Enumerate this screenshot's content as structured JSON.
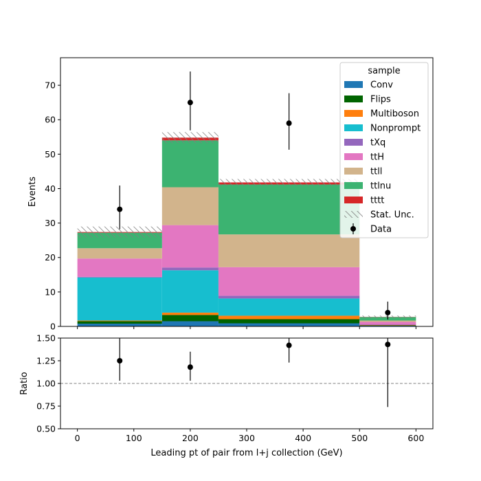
{
  "chart_data": [
    {
      "type": "bar",
      "subtype": "stacked-histogram",
      "xlabel": "Leading pt of pair from l+j collection (GeV)",
      "ylabel": "Events",
      "xlim": [
        -30,
        630
      ],
      "ylim": [
        0,
        78
      ],
      "bin_edges": [
        0,
        150,
        250,
        500,
        600
      ],
      "legend_title": "sample",
      "legend_loc": "upper right",
      "series": [
        {
          "name": "Conv",
          "color": "#1f77b4",
          "values": [
            0.8,
            1.5,
            0.9,
            0.2
          ]
        },
        {
          "name": "Flips",
          "color": "#006400",
          "values": [
            0.7,
            1.8,
            1.2,
            0.1
          ]
        },
        {
          "name": "Multiboson",
          "color": "#ff7f0e",
          "values": [
            0.2,
            0.7,
            1.0,
            0.1
          ]
        },
        {
          "name": "Nonprompt",
          "color": "#17becf",
          "values": [
            12.5,
            12.3,
            5.0,
            0.0
          ]
        },
        {
          "name": "tXq",
          "color": "#9467bd",
          "values": [
            0.2,
            0.8,
            0.8,
            0.1
          ]
        },
        {
          "name": "ttH",
          "color": "#e377c2",
          "values": [
            5.3,
            12.3,
            8.3,
            0.8
          ]
        },
        {
          "name": "ttll",
          "color": "#d2b48c",
          "values": [
            3.0,
            11.0,
            9.5,
            0.4
          ]
        },
        {
          "name": "ttlnu",
          "color": "#3cb371",
          "values": [
            4.5,
            13.6,
            14.5,
            1.0
          ]
        },
        {
          "name": "tttt",
          "color": "#d62728",
          "values": [
            0.2,
            0.8,
            0.6,
            0.05
          ]
        }
      ],
      "stat_unc": {
        "name": "Stat. Unc.",
        "values": [
          1.6,
          1.6,
          1.0,
          0.4
        ]
      },
      "data": {
        "name": "Data",
        "x": [
          75,
          200,
          375,
          550
        ],
        "y": [
          34,
          65,
          59,
          4
        ],
        "yerr_low": [
          5.8,
          8.1,
          7.7,
          2.0
        ],
        "yerr_high": [
          6.9,
          9.0,
          8.7,
          3.2
        ]
      },
      "yticks": [
        0,
        10,
        20,
        30,
        40,
        50,
        60,
        70
      ]
    },
    {
      "type": "scatter",
      "subtype": "ratio",
      "xlabel": "Leading pt of pair from l+j collection (GeV)",
      "ylabel": "Ratio",
      "xlim": [
        -30,
        630
      ],
      "ylim": [
        0.5,
        1.5
      ],
      "reference_line": 1.0,
      "x": [
        75,
        200,
        375,
        550
      ],
      "y": [
        1.25,
        1.18,
        1.42,
        1.43
      ],
      "yerr_low": [
        0.22,
        0.15,
        0.19,
        0.69
      ],
      "yerr_high": [
        0.3,
        0.17,
        0.21,
        0.8
      ],
      "xticks": [
        0,
        100,
        200,
        300,
        400,
        500,
        600
      ],
      "yticks": [
        "0.50",
        "0.75",
        "1.00",
        "1.25",
        "1.50"
      ]
    }
  ]
}
